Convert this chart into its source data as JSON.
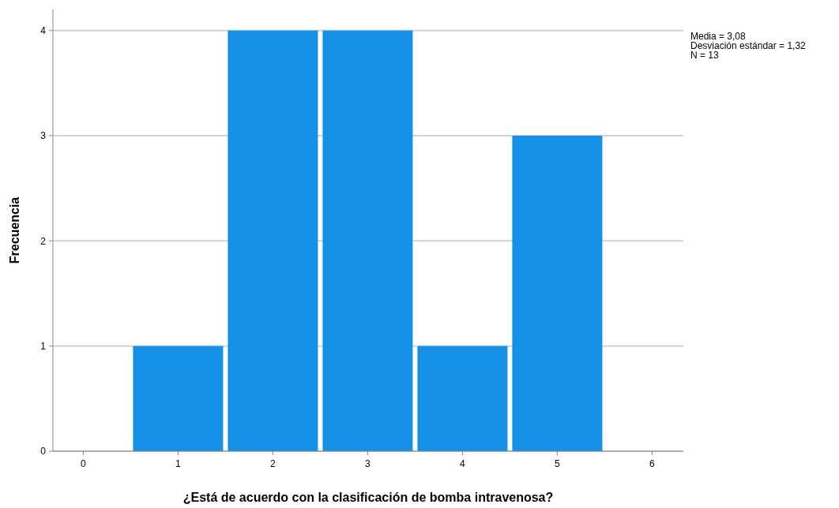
{
  "chart_data": {
    "type": "histogram",
    "xlabel": "¿Está de acuerdo con la clasificación de bomba intravenosa?",
    "ylabel": "Frecuencia",
    "bins": [
      0.5,
      1.5,
      2.5,
      3.5,
      4.5,
      5.5
    ],
    "values": [
      1,
      4,
      4,
      1,
      3
    ],
    "color": "#1490e6",
    "xlim": [
      -0.32,
      6.33
    ],
    "xticks": [
      0,
      1,
      2,
      3,
      4,
      5,
      6
    ],
    "ylim": [
      0,
      4.2
    ],
    "yticks": [
      0,
      1,
      2,
      3,
      4
    ],
    "grid": "y",
    "annotations": [
      "Media = 3,08",
      "Desviación estándar = 1,32",
      "N = 13"
    ]
  }
}
